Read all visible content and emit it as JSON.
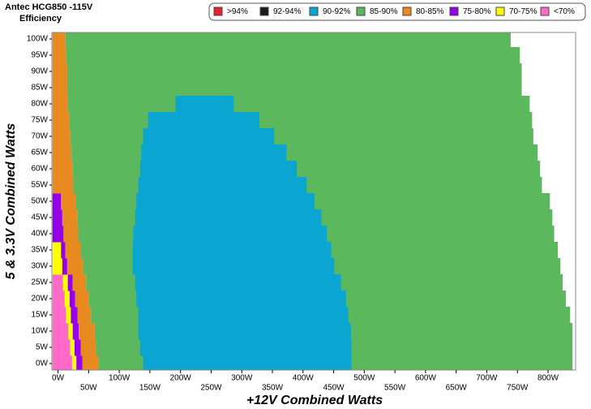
{
  "chart_data": {
    "type": "range-bar",
    "title": "Antec HCG850 -115V",
    "subtitle": "Efficiency",
    "x_label": "+12V Combined Watts",
    "y_label": "5 & 3.3V Combined Watts",
    "xlim": [
      -10,
      845
    ],
    "ylim": [
      -2,
      102
    ],
    "xticks": [
      {
        "value": 0,
        "label": "0W"
      },
      {
        "value": 50,
        "label": "50W"
      },
      {
        "value": 100,
        "label": "100W"
      },
      {
        "value": 150,
        "label": "150W"
      },
      {
        "value": 200,
        "label": "200W"
      },
      {
        "value": 250,
        "label": "250W"
      },
      {
        "value": 300,
        "label": "300W"
      },
      {
        "value": 350,
        "label": "350W"
      },
      {
        "value": 400,
        "label": "400W"
      },
      {
        "value": 450,
        "label": "450W"
      },
      {
        "value": 500,
        "label": "500W"
      },
      {
        "value": 550,
        "label": "550W"
      },
      {
        "value": 600,
        "label": "600W"
      },
      {
        "value": 650,
        "label": "650W"
      },
      {
        "value": 700,
        "label": "700W"
      },
      {
        "value": 750,
        "label": "750W"
      },
      {
        "value": 800,
        "label": "800W"
      }
    ],
    "yticks": [
      {
        "value": 0,
        "label": "0W"
      },
      {
        "value": 5,
        "label": "5W"
      },
      {
        "value": 10,
        "label": "10W"
      },
      {
        "value": 15,
        "label": "15W"
      },
      {
        "value": 20,
        "label": "20W"
      },
      {
        "value": 25,
        "label": "25W"
      },
      {
        "value": 30,
        "label": "30W"
      },
      {
        "value": 35,
        "label": "35W"
      },
      {
        "value": 40,
        "label": "40W"
      },
      {
        "value": 45,
        "label": "45W"
      },
      {
        "value": 50,
        "label": "50W"
      },
      {
        "value": 55,
        "label": "55W"
      },
      {
        "value": 60,
        "label": "60W"
      },
      {
        "value": 65,
        "label": "65W"
      },
      {
        "value": 70,
        "label": "70W"
      },
      {
        "value": 75,
        "label": "75W"
      },
      {
        "value": 80,
        "label": "80W"
      },
      {
        "value": 85,
        "label": "85W"
      },
      {
        "value": 90,
        "label": "90W"
      },
      {
        "value": 95,
        "label": "95W"
      },
      {
        "value": 100,
        "label": "100W"
      }
    ],
    "y": [
      0,
      5,
      10,
      15,
      20,
      25,
      30,
      35,
      40,
      45,
      50,
      55,
      60,
      65,
      70,
      75,
      80,
      85,
      90,
      95,
      100
    ],
    "series": [
      {
        "name": ">94%",
        "color": "#e8212f",
        "values": [
          null,
          null,
          null,
          null,
          null,
          null,
          null,
          null,
          null,
          null,
          null,
          null,
          null,
          null,
          null,
          null,
          null,
          null,
          null,
          null,
          null
        ]
      },
      {
        "name": "92-94%",
        "color": "#1a1a1a",
        "values": [
          null,
          null,
          null,
          null,
          null,
          null,
          null,
          null,
          null,
          null,
          null,
          null,
          null,
          null,
          null,
          null,
          null,
          null,
          null,
          null,
          null
        ]
      },
      {
        "name": "90-92%",
        "color": "#0ba5d2",
        "values": [
          [
            139,
            479
          ],
          [
            134,
            479
          ],
          [
            131,
            478
          ],
          [
            131,
            474
          ],
          [
            128,
            470
          ],
          [
            126,
            462
          ],
          [
            122,
            451
          ],
          [
            122,
            446
          ],
          [
            123,
            439
          ],
          [
            126,
            430
          ],
          [
            128,
            419
          ],
          [
            131,
            406
          ],
          [
            134,
            390
          ],
          [
            136,
            373
          ],
          [
            139,
            353
          ],
          [
            147,
            329
          ],
          [
            192,
            287
          ],
          null,
          null,
          null,
          null
        ]
      },
      {
        "name": "85-90%",
        "color": "#5cb85c",
        "values": [
          [
            66,
            840
          ],
          [
            62,
            840
          ],
          [
            60,
            840
          ],
          [
            54,
            836
          ],
          [
            50,
            829
          ],
          [
            46,
            824
          ],
          [
            41,
            820
          ],
          [
            37,
            816
          ],
          [
            33,
            810
          ],
          [
            32,
            807
          ],
          [
            29,
            803
          ],
          [
            25,
            790
          ],
          [
            24,
            787
          ],
          [
            22,
            783
          ],
          [
            20,
            776
          ],
          [
            18,
            774
          ],
          [
            16,
            770
          ],
          [
            15,
            757
          ],
          [
            15,
            757
          ],
          [
            13,
            754
          ],
          [
            12,
            739
          ]
        ]
      },
      {
        "name": "80-85%",
        "color": "#e88a1f",
        "values": [
          [
            40,
            66
          ],
          [
            37,
            62
          ],
          [
            34,
            60
          ],
          [
            32,
            54
          ],
          [
            28,
            50
          ],
          [
            24,
            46
          ],
          [
            15,
            41
          ],
          [
            12,
            37
          ],
          [
            9,
            33
          ],
          [
            7,
            32
          ],
          [
            5,
            29
          ],
          [
            -9,
            25
          ],
          [
            -9,
            24
          ],
          [
            -9,
            22
          ],
          [
            -9,
            20
          ],
          [
            -9,
            18
          ],
          [
            -9,
            16
          ],
          [
            -9,
            15
          ],
          [
            -9,
            15
          ],
          [
            -9,
            13
          ],
          [
            -9,
            12
          ]
        ]
      },
      {
        "name": "75-80%",
        "color": "#9400e8",
        "values": [
          [
            30,
            40
          ],
          [
            27,
            37
          ],
          [
            24,
            34
          ],
          [
            21,
            32
          ],
          [
            19,
            28
          ],
          [
            16,
            24
          ],
          [
            7,
            15
          ],
          [
            5,
            12
          ],
          [
            -9,
            9
          ],
          [
            -9,
            7
          ],
          [
            -9,
            5
          ],
          null,
          null,
          null,
          null,
          null,
          null,
          null,
          null,
          null,
          null
        ]
      },
      {
        "name": "70-75%",
        "color": "#ffff00",
        "values": [
          [
            23,
            30
          ],
          [
            20,
            27
          ],
          [
            17,
            24
          ],
          [
            13,
            21
          ],
          [
            11,
            19
          ],
          [
            8,
            16
          ],
          [
            -9,
            7
          ],
          [
            -9,
            5
          ],
          null,
          null,
          null,
          null,
          null,
          null,
          null,
          null,
          null,
          null,
          null,
          null,
          null
        ]
      },
      {
        "name": "<70%",
        "color": "#ff69c8",
        "values": [
          [
            -9,
            23
          ],
          [
            -9,
            20
          ],
          [
            -9,
            17
          ],
          [
            -9,
            13
          ],
          [
            -9,
            11
          ],
          [
            -9,
            8
          ],
          null,
          null,
          null,
          null,
          null,
          null,
          null,
          null,
          null,
          null,
          null,
          null,
          null,
          null,
          null
        ]
      }
    ]
  }
}
